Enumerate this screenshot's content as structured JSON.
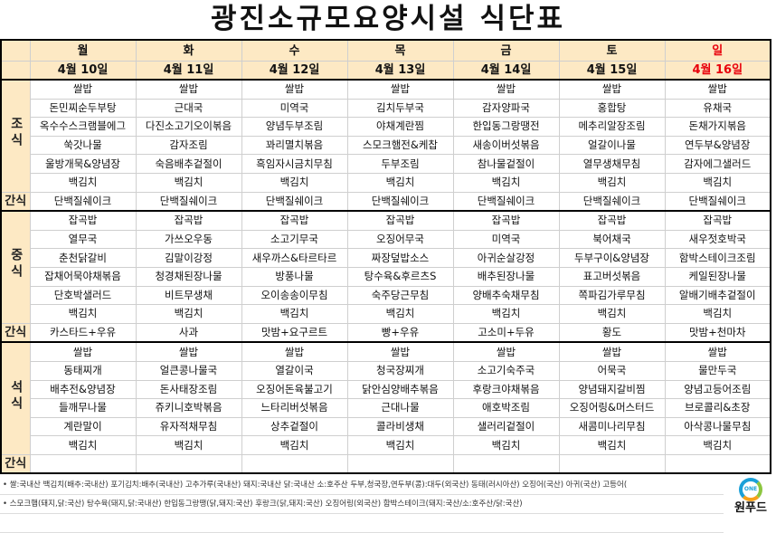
{
  "title": "광진소규모요양시설 식단표",
  "row_labels": {
    "breakfast": "조식",
    "lunch": "중식",
    "dinner": "석식",
    "snack": "간식"
  },
  "colors": {
    "header_bg": "#fde9c4",
    "sunday": "#e8000b"
  },
  "days": [
    {
      "day": "월",
      "date": "4월 10일",
      "breakfast": [
        "쌀밥",
        "돈민찌순두부탕",
        "옥수수스크램블에그",
        "쑥갓나물",
        "울방개묵&양념장",
        "백김치"
      ],
      "snack1": "단백질쉐이크",
      "lunch": [
        "잡곡밥",
        "열무국",
        "춘천닭갈비",
        "잡채어묵야채볶음",
        "단호박샐러드",
        "백김치"
      ],
      "snack2": "카스타드+우유",
      "dinner": [
        "쌀밥",
        "동태찌개",
        "배추전&양념장",
        "들깨무나물",
        "계란말이",
        "백김치"
      ],
      "snack3": ""
    },
    {
      "day": "화",
      "date": "4월 11일",
      "breakfast": [
        "쌀밥",
        "근대국",
        "다진소고기오이볶음",
        "감자조림",
        "숙음배추겉절이",
        "백김치"
      ],
      "snack1": "단백질쉐이크",
      "lunch": [
        "잡곡밥",
        "가쓰오우동",
        "김말이강정",
        "청경채된장나물",
        "비트무생채",
        "백김치"
      ],
      "snack2": "사과",
      "dinner": [
        "쌀밥",
        "얼큰콩나물국",
        "돈사태장조림",
        "쥬키니호박볶음",
        "유자적채무침",
        "백김치"
      ],
      "snack3": ""
    },
    {
      "day": "수",
      "date": "4월 12일",
      "breakfast": [
        "쌀밥",
        "미역국",
        "양념두부조림",
        "꽈리멸치볶음",
        "흑임자시금치무침",
        "백김치"
      ],
      "snack1": "단백질쉐이크",
      "lunch": [
        "잡곡밥",
        "소고기무국",
        "새우까스&타르타르",
        "방풍나물",
        "오이송송이무침",
        "백김치"
      ],
      "snack2": "맛밤+요구르트",
      "dinner": [
        "쌀밥",
        "열갈이국",
        "오징어돈육불고기",
        "느타리버섯볶음",
        "상추겉절이",
        "백김치"
      ],
      "snack3": ""
    },
    {
      "day": "목",
      "date": "4월 13일",
      "breakfast": [
        "쌀밥",
        "김치두부국",
        "야채계란찜",
        "스모크햄전&케찹",
        "두부조림",
        "백김치"
      ],
      "snack1": "단백질쉐이크",
      "lunch": [
        "잡곡밥",
        "오징어무국",
        "짜장덮밥소스",
        "탕수육&후르츠S",
        "숙주당근무침",
        "백김치"
      ],
      "snack2": "빵+우유",
      "dinner": [
        "쌀밥",
        "청국장찌개",
        "닭안심양배추볶음",
        "근대나물",
        "콜라비생채",
        "백김치"
      ],
      "snack3": ""
    },
    {
      "day": "금",
      "date": "4월 14일",
      "breakfast": [
        "쌀밥",
        "감자양파국",
        "한입동그랑땡전",
        "새송이버섯볶음",
        "참나물겉절이",
        "백김치"
      ],
      "snack1": "단백질쉐이크",
      "lunch": [
        "잡곡밥",
        "미역국",
        "아귀순살강정",
        "배추된장나물",
        "양배추숙채무침",
        "백김치"
      ],
      "snack2": "고소미+두유",
      "dinner": [
        "쌀밥",
        "소고기숙주국",
        "후랑크야채볶음",
        "애호박조림",
        "샐러리겉절이",
        "백김치"
      ],
      "snack3": ""
    },
    {
      "day": "토",
      "date": "4월 15일",
      "breakfast": [
        "쌀밥",
        "홍합탕",
        "메추리알장조림",
        "얼갈이나물",
        "열무생채무침",
        "백김치"
      ],
      "snack1": "단백질쉐이크",
      "lunch": [
        "잡곡밥",
        "북어채국",
        "두부구이&양념장",
        "표고버섯볶음",
        "쪽파김가루무침",
        "백김치"
      ],
      "snack2": "황도",
      "dinner": [
        "쌀밥",
        "어묵국",
        "양념돼지갈비찜",
        "오징어링&머스터드",
        "새콤미나리무침",
        "백김치"
      ],
      "snack3": ""
    },
    {
      "day": "일",
      "date": "4월 16일",
      "breakfast": [
        "쌀밥",
        "유채국",
        "돈채가지볶음",
        "연두부&양념장",
        "감자에그샐러드",
        "백김치"
      ],
      "snack1": "단백질쉐이크",
      "lunch": [
        "잡곡밥",
        "새우젓호박국",
        "함박스테이크조림",
        "케일된장나물",
        "알배기배추겉절이",
        "백김치"
      ],
      "snack2": "맛밤+천마차",
      "dinner": [
        "쌀밥",
        "물만두국",
        "양념고등어조림",
        "브로콜리&초장",
        "아삭콩나물무침",
        "백김치"
      ],
      "snack3": "",
      "holiday": true
    }
  ],
  "footer": [
    "• 쌀:국내산 백김치(배추:국내산) 포기김치:배추(국내산) 고추가루(국내산) 돼지:국내산 닭:국내산 소:호주산 두부,청국장,연두부(콩):대두(외국산) 동태(러시아산) 오징어(국산) 아귀(국산) 고등어(",
    "• 스모크햄(돼지,닭:국산) 탕수육(돼지,닭:국내산) 한입동그랑땡(닭,돼지:국산) 후랑크(닭,돼지:국산) 오징어링(외국산) 함박스테이크(돼지:국산/소:호주산/닭:국산)"
  ],
  "logo": {
    "ring_text": "ONE",
    "name": "원푸드"
  }
}
